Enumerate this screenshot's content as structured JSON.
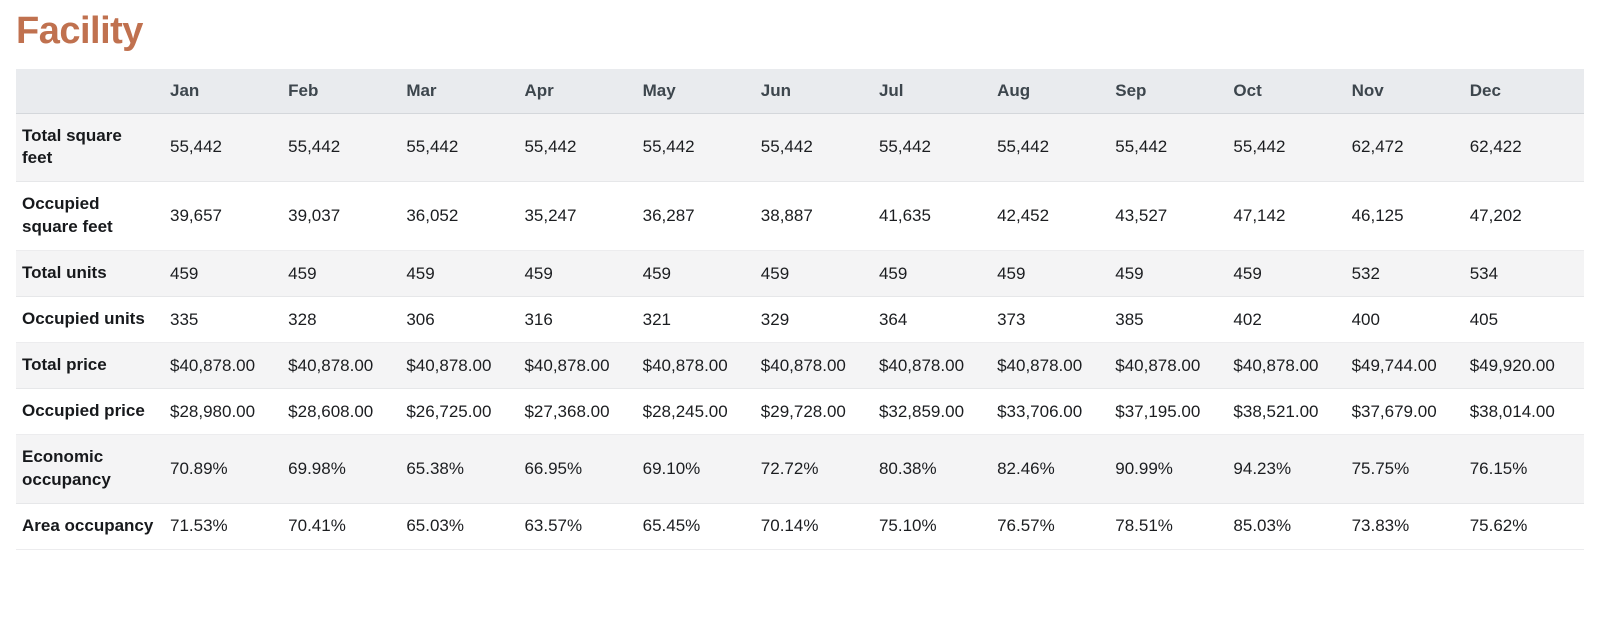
{
  "page": {
    "title": "Facility"
  },
  "colors": {
    "title": "#c0714f",
    "header_background": "#e9ebee",
    "stripe_background": "#f4f4f5",
    "header_text": "#3d464d",
    "body_text": "#17191c"
  },
  "table": {
    "columns": [
      "Jan",
      "Feb",
      "Mar",
      "Apr",
      "May",
      "Jun",
      "Jul",
      "Aug",
      "Sep",
      "Oct",
      "Nov",
      "Dec"
    ],
    "rows": [
      {
        "label": "Total square feet",
        "values": [
          "55,442",
          "55,442",
          "55,442",
          "55,442",
          "55,442",
          "55,442",
          "55,442",
          "55,442",
          "55,442",
          "55,442",
          "62,472",
          "62,422"
        ]
      },
      {
        "label": "Occupied square feet",
        "values": [
          "39,657",
          "39,037",
          "36,052",
          "35,247",
          "36,287",
          "38,887",
          "41,635",
          "42,452",
          "43,527",
          "47,142",
          "46,125",
          "47,202"
        ]
      },
      {
        "label": "Total units",
        "values": [
          "459",
          "459",
          "459",
          "459",
          "459",
          "459",
          "459",
          "459",
          "459",
          "459",
          "532",
          "534"
        ]
      },
      {
        "label": "Occupied units",
        "values": [
          "335",
          "328",
          "306",
          "316",
          "321",
          "329",
          "364",
          "373",
          "385",
          "402",
          "400",
          "405"
        ]
      },
      {
        "label": "Total price",
        "values": [
          "$40,878.00",
          "$40,878.00",
          "$40,878.00",
          "$40,878.00",
          "$40,878.00",
          "$40,878.00",
          "$40,878.00",
          "$40,878.00",
          "$40,878.00",
          "$40,878.00",
          "$49,744.00",
          "$49,920.00"
        ]
      },
      {
        "label": "Occupied price",
        "values": [
          "$28,980.00",
          "$28,608.00",
          "$26,725.00",
          "$27,368.00",
          "$28,245.00",
          "$29,728.00",
          "$32,859.00",
          "$33,706.00",
          "$37,195.00",
          "$38,521.00",
          "$37,679.00",
          "$38,014.00"
        ]
      },
      {
        "label": "Economic occupancy",
        "values": [
          "70.89%",
          "69.98%",
          "65.38%",
          "66.95%",
          "69.10%",
          "72.72%",
          "80.38%",
          "82.46%",
          "90.99%",
          "94.23%",
          "75.75%",
          "76.15%"
        ]
      },
      {
        "label": "Area occupancy",
        "values": [
          "71.53%",
          "70.41%",
          "65.03%",
          "63.57%",
          "65.45%",
          "70.14%",
          "75.10%",
          "76.57%",
          "78.51%",
          "85.03%",
          "73.83%",
          "75.62%"
        ]
      }
    ]
  }
}
